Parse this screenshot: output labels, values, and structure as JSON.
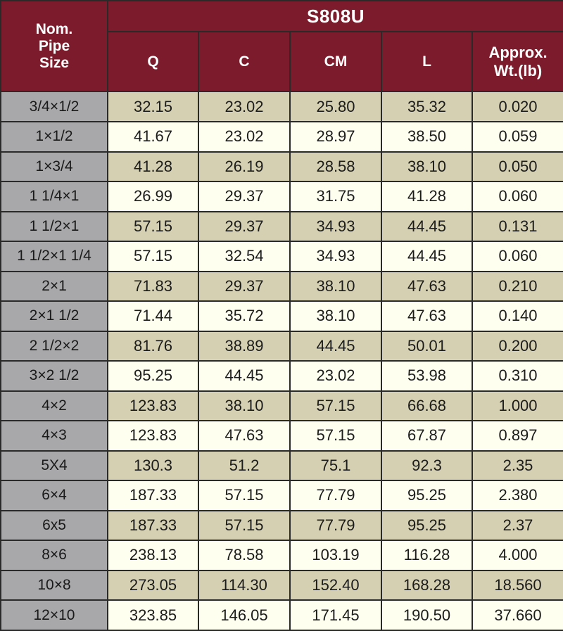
{
  "table": {
    "model": "S808U",
    "size_header": [
      "Nom.",
      "Pipe",
      "Size"
    ],
    "columns": [
      "Q",
      "C",
      "CM",
      "L"
    ],
    "weight_header": [
      "Approx.",
      "Wt.(lb)"
    ],
    "rows": [
      {
        "size": "3/4×1/2",
        "values": [
          "32.15",
          "23.02",
          "25.80",
          "35.32",
          "0.020"
        ]
      },
      {
        "size": "1×1/2",
        "values": [
          "41.67",
          "23.02",
          "28.97",
          "38.50",
          "0.059"
        ]
      },
      {
        "size": "1×3/4",
        "values": [
          "41.28",
          "26.19",
          "28.58",
          "38.10",
          "0.050"
        ]
      },
      {
        "size": "1 1/4×1",
        "values": [
          "26.99",
          "29.37",
          "31.75",
          "41.28",
          "0.060"
        ]
      },
      {
        "size": "1 1/2×1",
        "values": [
          "57.15",
          "29.37",
          "34.93",
          "44.45",
          "0.131"
        ]
      },
      {
        "size": "1 1/2×1 1/4",
        "values": [
          "57.15",
          "32.54",
          "34.93",
          "44.45",
          "0.060"
        ]
      },
      {
        "size": "2×1",
        "values": [
          "71.83",
          "29.37",
          "38.10",
          "47.63",
          "0.210"
        ]
      },
      {
        "size": "2×1 1/2",
        "values": [
          "71.44",
          "35.72",
          "38.10",
          "47.63",
          "0.140"
        ]
      },
      {
        "size": "2 1/2×2",
        "values": [
          "81.76",
          "38.89",
          "44.45",
          "50.01",
          "0.200"
        ]
      },
      {
        "size": "3×2 1/2",
        "values": [
          "95.25",
          "44.45",
          "23.02",
          "53.98",
          "0.310"
        ]
      },
      {
        "size": "4×2",
        "values": [
          "123.83",
          "38.10",
          "57.15",
          "66.68",
          "1.000"
        ]
      },
      {
        "size": "4×3",
        "values": [
          "123.83",
          "47.63",
          "57.15",
          "67.87",
          "0.897"
        ]
      },
      {
        "size": "5X4",
        "values": [
          "130.3",
          "51.2",
          "75.1",
          "92.3",
          "2.35"
        ]
      },
      {
        "size": "6×4",
        "values": [
          "187.33",
          "57.15",
          "77.79",
          "95.25",
          "2.380"
        ]
      },
      {
        "size": "6x5",
        "values": [
          "187.33",
          "57.15",
          "77.79",
          "95.25",
          "2.37"
        ]
      },
      {
        "size": "8×6",
        "values": [
          "238.13",
          "78.58",
          "103.19",
          "116.28",
          "4.000"
        ]
      },
      {
        "size": "10×8",
        "values": [
          "273.05",
          "114.30",
          "152.40",
          "168.28",
          "18.560"
        ]
      },
      {
        "size": "12×10",
        "values": [
          "323.85",
          "146.05",
          "171.45",
          "190.50",
          "37.660"
        ]
      }
    ]
  },
  "colors": {
    "header_bg": "#7c1b2b",
    "size_col_bg": "#a8a8ab",
    "row_shaded_bg": "#d5d0b2",
    "row_light_bg": "#fffff0"
  }
}
